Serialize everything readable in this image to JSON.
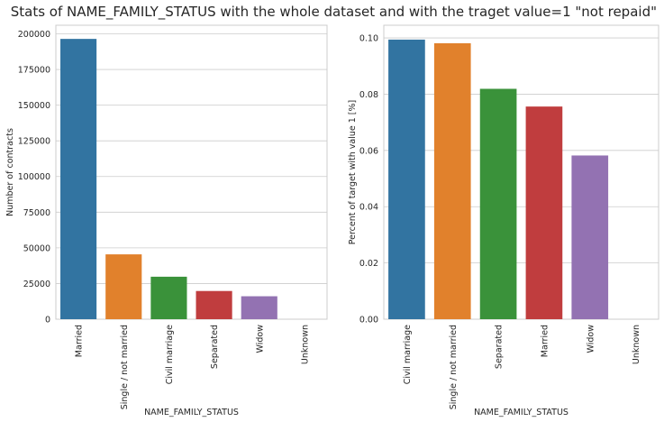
{
  "figure_title": "Stats of NAME_FAMILY_STATUS with the whole dataset and with the traget value=1 \"not repaid\"",
  "chart_data": [
    {
      "type": "bar",
      "xlabel": "NAME_FAMILY_STATUS",
      "ylabel": "Number of contracts",
      "categories": [
        "Married",
        "Single / not married",
        "Civil marriage",
        "Separated",
        "Widow",
        "Unknown"
      ],
      "values": [
        196432,
        45444,
        29775,
        19770,
        16088,
        2
      ],
      "ylim": [
        0,
        206000
      ],
      "yticks": [
        0,
        25000,
        50000,
        75000,
        100000,
        125000,
        150000,
        175000,
        200000
      ],
      "colors": [
        "#3274a1",
        "#e1812c",
        "#3a923a",
        "#c03d3e",
        "#9372b2",
        "#845b53"
      ],
      "grid": "horizontal"
    },
    {
      "type": "bar",
      "xlabel": "NAME_FAMILY_STATUS",
      "ylabel": "Percent of target with value 1 [%]",
      "categories": [
        "Civil marriage",
        "Single / not married",
        "Separated",
        "Married",
        "Widow",
        "Unknown"
      ],
      "values": [
        0.0994,
        0.0981,
        0.0819,
        0.0756,
        0.0582,
        0.0
      ],
      "ylim": [
        0,
        0.1045
      ],
      "yticks": [
        "0.00",
        "0.02",
        "0.04",
        "0.06",
        "0.08",
        "0.10"
      ],
      "colors": [
        "#3274a1",
        "#e1812c",
        "#3a923a",
        "#c03d3e",
        "#9372b2",
        "#845b53"
      ],
      "grid": "horizontal"
    }
  ]
}
